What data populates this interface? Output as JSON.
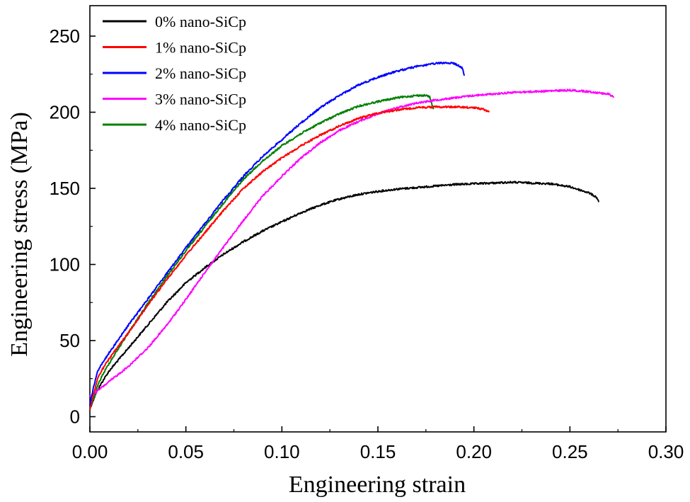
{
  "chart_data": {
    "type": "line",
    "title": "",
    "xlabel": "Engineering strain",
    "ylabel": "Engineering stress (MPa)",
    "xlim": [
      0,
      0.3
    ],
    "ylim": [
      -10,
      270
    ],
    "xticks": [
      0.0,
      0.05,
      0.1,
      0.15,
      0.2,
      0.25,
      0.3
    ],
    "xtick_labels": [
      "0.00",
      "0.05",
      "0.10",
      "0.15",
      "0.20",
      "0.25",
      "0.30"
    ],
    "yticks": [
      0,
      50,
      100,
      150,
      200,
      250
    ],
    "ytick_labels": [
      "0",
      "50",
      "100",
      "150",
      "200",
      "250"
    ],
    "grid": false,
    "legend_position": "top-left",
    "series": [
      {
        "name": "0% nano-SiCp",
        "color": "#000000",
        "x": [
          0,
          0.003,
          0.006,
          0.01,
          0.02,
          0.03,
          0.04,
          0.05,
          0.06,
          0.07,
          0.08,
          0.09,
          0.1,
          0.11,
          0.12,
          0.13,
          0.14,
          0.15,
          0.16,
          0.17,
          0.18,
          0.19,
          0.2,
          0.21,
          0.22,
          0.23,
          0.24,
          0.25,
          0.26,
          0.264,
          0.265
        ],
        "y": [
          5,
          15,
          22,
          30,
          45,
          60,
          75,
          88,
          98,
          107,
          115,
          122,
          128,
          134,
          139,
          143,
          146,
          148,
          149.5,
          150.5,
          151.5,
          152.5,
          153,
          153.5,
          154,
          153.5,
          153,
          151,
          147,
          144,
          141
        ]
      },
      {
        "name": "1% nano-SiCp",
        "color": "#ff0000",
        "x": [
          0,
          0.002,
          0.004,
          0.006,
          0.01,
          0.02,
          0.03,
          0.04,
          0.05,
          0.06,
          0.07,
          0.08,
          0.09,
          0.1,
          0.11,
          0.12,
          0.13,
          0.14,
          0.15,
          0.16,
          0.17,
          0.18,
          0.19,
          0.2,
          0.205,
          0.208
        ],
        "y": [
          5,
          15,
          25,
          30,
          38,
          55,
          73,
          90,
          106,
          121,
          136,
          150,
          161,
          170,
          178,
          185,
          191,
          196,
          199.5,
          201.5,
          203,
          203.5,
          203.5,
          203,
          202,
          200
        ]
      },
      {
        "name": "2% nano-SiCp",
        "color": "#0000ff",
        "x": [
          0,
          0.002,
          0.004,
          0.006,
          0.01,
          0.02,
          0.03,
          0.04,
          0.05,
          0.06,
          0.07,
          0.08,
          0.09,
          0.1,
          0.11,
          0.12,
          0.13,
          0.14,
          0.15,
          0.16,
          0.17,
          0.18,
          0.185,
          0.19,
          0.194,
          0.195
        ],
        "y": [
          8,
          20,
          30,
          34,
          42,
          60,
          77,
          94,
          111,
          127,
          143,
          158,
          171,
          182,
          193,
          203,
          211,
          218,
          223,
          227,
          230,
          232,
          232.5,
          232,
          229,
          224
        ]
      },
      {
        "name": "3% nano-SiCp",
        "color": "#ff00ff",
        "x": [
          0,
          0.005,
          0.01,
          0.02,
          0.03,
          0.04,
          0.05,
          0.06,
          0.07,
          0.08,
          0.09,
          0.1,
          0.11,
          0.12,
          0.13,
          0.14,
          0.15,
          0.16,
          0.17,
          0.18,
          0.19,
          0.2,
          0.21,
          0.22,
          0.23,
          0.24,
          0.25,
          0.26,
          0.27,
          0.273
        ],
        "y": [
          13,
          18,
          23,
          33,
          45,
          60,
          77,
          95,
          112,
          129,
          145,
          158,
          170,
          180,
          188,
          194,
          199,
          203,
          206,
          208,
          209.5,
          211,
          212,
          213,
          213.5,
          214,
          214.5,
          213.5,
          212,
          210
        ]
      },
      {
        "name": "4% nano-SiCp",
        "color": "#008000",
        "x": [
          0,
          0.002,
          0.004,
          0.006,
          0.01,
          0.02,
          0.03,
          0.04,
          0.05,
          0.06,
          0.07,
          0.08,
          0.09,
          0.1,
          0.11,
          0.12,
          0.13,
          0.14,
          0.15,
          0.16,
          0.17,
          0.175,
          0.177,
          0.178,
          0.179
        ],
        "y": [
          5,
          12,
          20,
          26,
          35,
          55,
          74,
          92,
          109,
          125,
          141,
          156,
          168,
          178,
          186,
          193,
          199,
          204,
          207,
          209.5,
          211,
          211,
          210,
          206,
          202
        ]
      }
    ]
  }
}
